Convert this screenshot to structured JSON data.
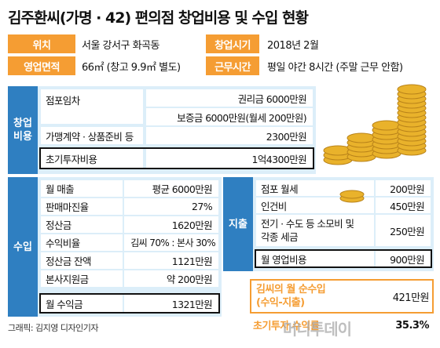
{
  "title": "김주환씨(가명 · 42) 편의점 창업비용 및 수입 현황",
  "info": {
    "location_label": "위치",
    "location_value": "서울 강서구 화곡동",
    "startdate_label": "창업시기",
    "startdate_value": "2018년 2월",
    "area_label": "영업면적",
    "area_value": "66㎡ (창고 9.9㎡ 별도)",
    "hours_label": "근무시간",
    "hours_value": "평일 야간 8시간 (주말 근무 안함)"
  },
  "startup": {
    "side_label": "창업\n비용",
    "rows": [
      {
        "label": "점포임차",
        "value": "권리금 6000만원"
      },
      {
        "label": "",
        "value": "보증금 6000만원(월세 200만원)"
      },
      {
        "label": "가맹계약 · 상품준비 등",
        "value": "2300만원"
      },
      {
        "label": "초기투자비용",
        "value": "1억4300만원"
      }
    ]
  },
  "income": {
    "side_label": "수입",
    "rows": [
      {
        "label": "월 매출",
        "value": "평균 6000만원"
      },
      {
        "label": "판매마진율",
        "value": "27%"
      },
      {
        "label": "정산금",
        "value": "1620만원"
      },
      {
        "label": "수익비율",
        "value": "김씨 70% : 본사 30%"
      },
      {
        "label": "정산금 잔액",
        "value": "1121만원"
      },
      {
        "label": "본사지원금",
        "value": "약 200만원"
      },
      {
        "label": "월 수익금",
        "value": "1321만원"
      }
    ]
  },
  "expense": {
    "side_label": "지출",
    "rows": [
      {
        "label": "점포 월세",
        "value": "200만원"
      },
      {
        "label": "인건비",
        "value": "450만원"
      },
      {
        "label": "전기 · 수도 등 소모비 및\n각종 세금",
        "value": "250만원"
      },
      {
        "label": "월 영업비용",
        "value": "900만원"
      }
    ]
  },
  "summary": {
    "net_label": "김씨의 월 순수입\n(수익-지출)",
    "net_value": "421만원",
    "ratio_label": "초기투자 수익률",
    "ratio_value": "35.3%"
  },
  "credit": "그래픽: 김지영 디자인기자",
  "watermark": "머니투데이",
  "colors": {
    "orange": "#f59d33",
    "blue": "#2f7fc1",
    "light_blue": "#dceef9",
    "coin": "#e9b22b"
  }
}
